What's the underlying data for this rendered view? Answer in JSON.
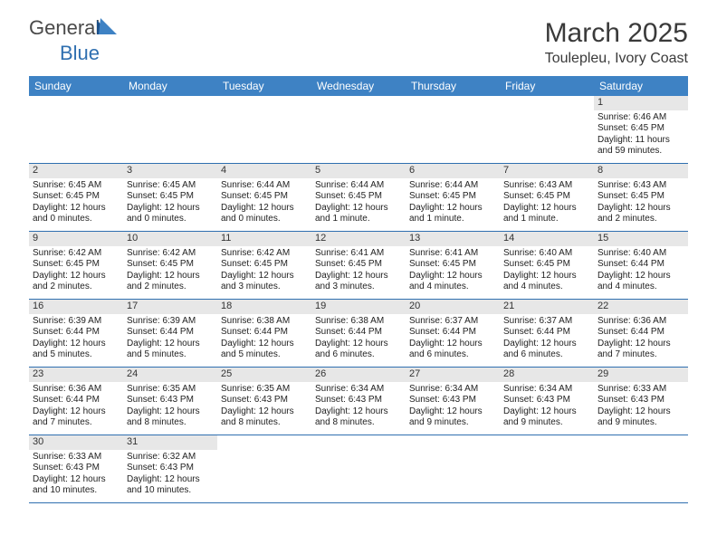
{
  "brand": {
    "part1": "General",
    "part2": "Blue"
  },
  "title": "March 2025",
  "location": "Toulepleu, Ivory Coast",
  "colors": {
    "header_bg": "#3e82c4",
    "header_text": "#ffffff",
    "rule": "#2f6fb0",
    "daynum_bg": "#e7e7e7",
    "text": "#222222",
    "logo_gray": "#4a4a4a",
    "logo_blue": "#2f6fb0"
  },
  "daynames": [
    "Sunday",
    "Monday",
    "Tuesday",
    "Wednesday",
    "Thursday",
    "Friday",
    "Saturday"
  ],
  "labels": {
    "sunrise": "Sunrise: ",
    "sunset": "Sunset: ",
    "daylight": "Daylight: "
  },
  "weeks": [
    [
      {
        "empty": true
      },
      {
        "empty": true
      },
      {
        "empty": true
      },
      {
        "empty": true
      },
      {
        "empty": true
      },
      {
        "empty": true
      },
      {
        "n": "1",
        "sr": "6:46 AM",
        "ss": "6:45 PM",
        "dl": "11 hours and 59 minutes."
      }
    ],
    [
      {
        "n": "2",
        "sr": "6:45 AM",
        "ss": "6:45 PM",
        "dl": "12 hours and 0 minutes."
      },
      {
        "n": "3",
        "sr": "6:45 AM",
        "ss": "6:45 PM",
        "dl": "12 hours and 0 minutes."
      },
      {
        "n": "4",
        "sr": "6:44 AM",
        "ss": "6:45 PM",
        "dl": "12 hours and 0 minutes."
      },
      {
        "n": "5",
        "sr": "6:44 AM",
        "ss": "6:45 PM",
        "dl": "12 hours and 1 minute."
      },
      {
        "n": "6",
        "sr": "6:44 AM",
        "ss": "6:45 PM",
        "dl": "12 hours and 1 minute."
      },
      {
        "n": "7",
        "sr": "6:43 AM",
        "ss": "6:45 PM",
        "dl": "12 hours and 1 minute."
      },
      {
        "n": "8",
        "sr": "6:43 AM",
        "ss": "6:45 PM",
        "dl": "12 hours and 2 minutes."
      }
    ],
    [
      {
        "n": "9",
        "sr": "6:42 AM",
        "ss": "6:45 PM",
        "dl": "12 hours and 2 minutes."
      },
      {
        "n": "10",
        "sr": "6:42 AM",
        "ss": "6:45 PM",
        "dl": "12 hours and 2 minutes."
      },
      {
        "n": "11",
        "sr": "6:42 AM",
        "ss": "6:45 PM",
        "dl": "12 hours and 3 minutes."
      },
      {
        "n": "12",
        "sr": "6:41 AM",
        "ss": "6:45 PM",
        "dl": "12 hours and 3 minutes."
      },
      {
        "n": "13",
        "sr": "6:41 AM",
        "ss": "6:45 PM",
        "dl": "12 hours and 4 minutes."
      },
      {
        "n": "14",
        "sr": "6:40 AM",
        "ss": "6:45 PM",
        "dl": "12 hours and 4 minutes."
      },
      {
        "n": "15",
        "sr": "6:40 AM",
        "ss": "6:44 PM",
        "dl": "12 hours and 4 minutes."
      }
    ],
    [
      {
        "n": "16",
        "sr": "6:39 AM",
        "ss": "6:44 PM",
        "dl": "12 hours and 5 minutes."
      },
      {
        "n": "17",
        "sr": "6:39 AM",
        "ss": "6:44 PM",
        "dl": "12 hours and 5 minutes."
      },
      {
        "n": "18",
        "sr": "6:38 AM",
        "ss": "6:44 PM",
        "dl": "12 hours and 5 minutes."
      },
      {
        "n": "19",
        "sr": "6:38 AM",
        "ss": "6:44 PM",
        "dl": "12 hours and 6 minutes."
      },
      {
        "n": "20",
        "sr": "6:37 AM",
        "ss": "6:44 PM",
        "dl": "12 hours and 6 minutes."
      },
      {
        "n": "21",
        "sr": "6:37 AM",
        "ss": "6:44 PM",
        "dl": "12 hours and 6 minutes."
      },
      {
        "n": "22",
        "sr": "6:36 AM",
        "ss": "6:44 PM",
        "dl": "12 hours and 7 minutes."
      }
    ],
    [
      {
        "n": "23",
        "sr": "6:36 AM",
        "ss": "6:44 PM",
        "dl": "12 hours and 7 minutes."
      },
      {
        "n": "24",
        "sr": "6:35 AM",
        "ss": "6:43 PM",
        "dl": "12 hours and 8 minutes."
      },
      {
        "n": "25",
        "sr": "6:35 AM",
        "ss": "6:43 PM",
        "dl": "12 hours and 8 minutes."
      },
      {
        "n": "26",
        "sr": "6:34 AM",
        "ss": "6:43 PM",
        "dl": "12 hours and 8 minutes."
      },
      {
        "n": "27",
        "sr": "6:34 AM",
        "ss": "6:43 PM",
        "dl": "12 hours and 9 minutes."
      },
      {
        "n": "28",
        "sr": "6:34 AM",
        "ss": "6:43 PM",
        "dl": "12 hours and 9 minutes."
      },
      {
        "n": "29",
        "sr": "6:33 AM",
        "ss": "6:43 PM",
        "dl": "12 hours and 9 minutes."
      }
    ],
    [
      {
        "n": "30",
        "sr": "6:33 AM",
        "ss": "6:43 PM",
        "dl": "12 hours and 10 minutes."
      },
      {
        "n": "31",
        "sr": "6:32 AM",
        "ss": "6:43 PM",
        "dl": "12 hours and 10 minutes."
      },
      {
        "empty": true
      },
      {
        "empty": true
      },
      {
        "empty": true
      },
      {
        "empty": true
      },
      {
        "empty": true
      }
    ]
  ]
}
